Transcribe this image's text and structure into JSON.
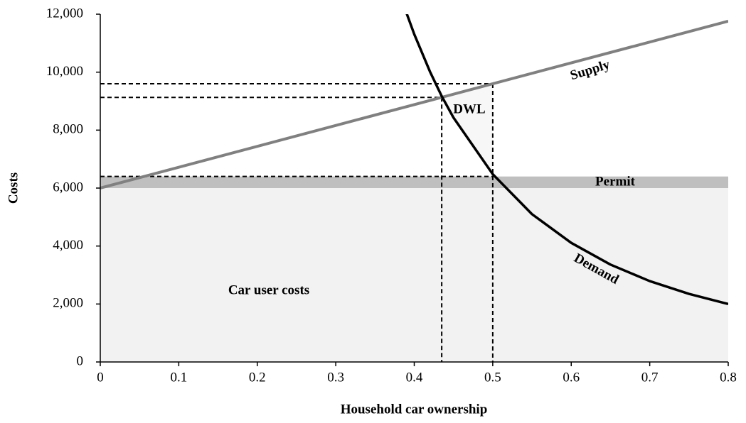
{
  "chart_data": {
    "type": "line",
    "x_label": "Household car ownership",
    "y_label": "Costs",
    "xlim": [
      0,
      0.8
    ],
    "xticks": [
      0,
      0.1,
      0.2,
      0.3,
      0.4,
      0.5,
      0.6,
      0.7,
      0.8
    ],
    "ylim": [
      0,
      12000
    ],
    "yticks": [
      0,
      {
        "value": 2000,
        "label": "2,000"
      },
      {
        "value": 4000,
        "label": "4,000"
      },
      {
        "value": 6000,
        "label": "6,000"
      },
      {
        "value": 8000,
        "label": "8,000"
      },
      {
        "value": 10000,
        "label": "10,000"
      },
      {
        "value": 12000,
        "label": "12,000"
      }
    ],
    "series": [
      {
        "name": "Supply",
        "color": "#808080",
        "x": [
          0,
          0.8
        ],
        "values": [
          6000,
          11760
        ]
      },
      {
        "name": "Demand",
        "color": "#000000",
        "x": [
          0.39,
          0.4,
          0.42,
          0.435,
          0.45,
          0.5,
          0.55,
          0.6,
          0.65,
          0.7,
          0.75,
          0.8
        ],
        "values": [
          12050,
          11310,
          10020,
          9170,
          8430,
          6480,
          5100,
          4110,
          3360,
          2790,
          2350,
          2000
        ]
      }
    ],
    "bands": [
      {
        "label": "Car user costs",
        "from": 0,
        "to": 6000,
        "color": "#f2f2f2"
      },
      {
        "label": "Permit",
        "from": 6000,
        "to": 6400,
        "color": "#bfbfbf"
      }
    ],
    "reference_points": [
      {
        "x": 0.435,
        "y": 9130
      },
      {
        "x": 0.5,
        "y": 9600
      },
      {
        "x": 0.5,
        "y": 6400
      }
    ],
    "annotations": [
      "DWL"
    ]
  }
}
